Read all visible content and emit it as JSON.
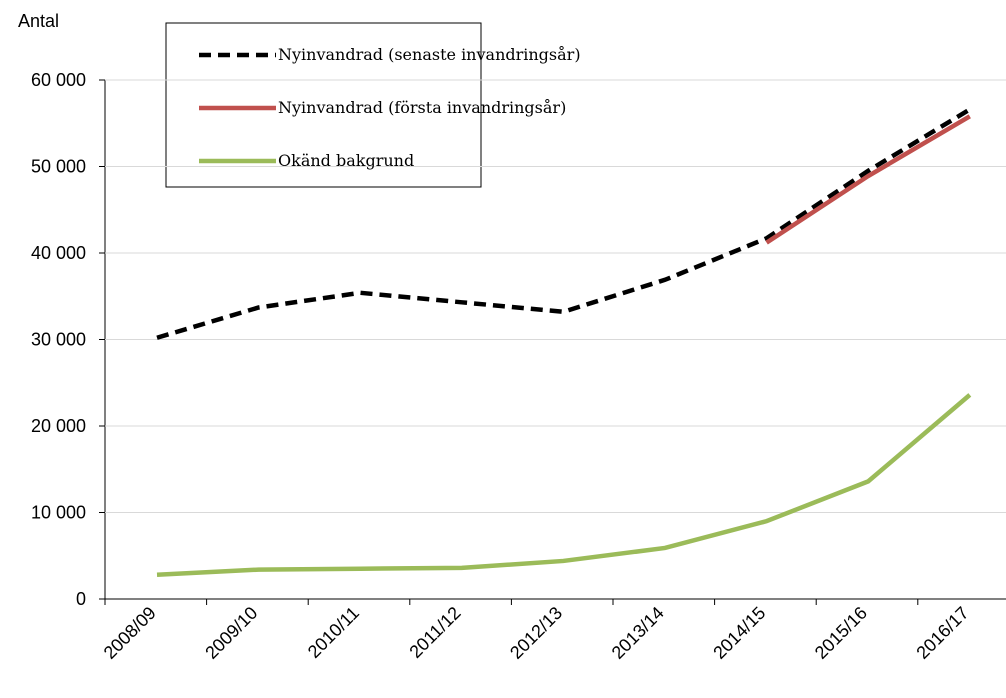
{
  "chart_data": {
    "type": "line",
    "y_axis_label": "Antal",
    "categories": [
      "2008/09",
      "2009/10",
      "2010/11",
      "2011/12",
      "2012/13",
      "2013/14",
      "2014/15",
      "2015/16",
      "2016/17"
    ],
    "series": [
      {
        "name": "Nyinvandrad (senaste invandringsår)",
        "color": "#000000",
        "dash": true,
        "values": [
          30200,
          33700,
          35400,
          34300,
          33200,
          36900,
          41700,
          49500,
          56600
        ]
      },
      {
        "name": "Nyinvandrad (första invandringsår)",
        "color": "#c0504d",
        "dash": false,
        "values": [
          null,
          null,
          null,
          null,
          null,
          null,
          41200,
          48900,
          55800
        ]
      },
      {
        "name": "Okänd bakgrund",
        "color": "#9bbb59",
        "dash": false,
        "values": [
          2800,
          3400,
          3500,
          3600,
          4400,
          5900,
          9000,
          13600,
          23600
        ]
      }
    ],
    "ylim": [
      0,
      60000
    ],
    "yticks": [
      0,
      {
        "value": 10000,
        "label": "10 000"
      },
      {
        "value": 20000,
        "label": "20 000"
      },
      {
        "value": 30000,
        "label": "30 000"
      },
      {
        "value": 40000,
        "label": "40 000"
      },
      {
        "value": 50000,
        "label": "50 000"
      },
      {
        "value": 60000,
        "label": "60 000"
      }
    ],
    "grid": true
  }
}
